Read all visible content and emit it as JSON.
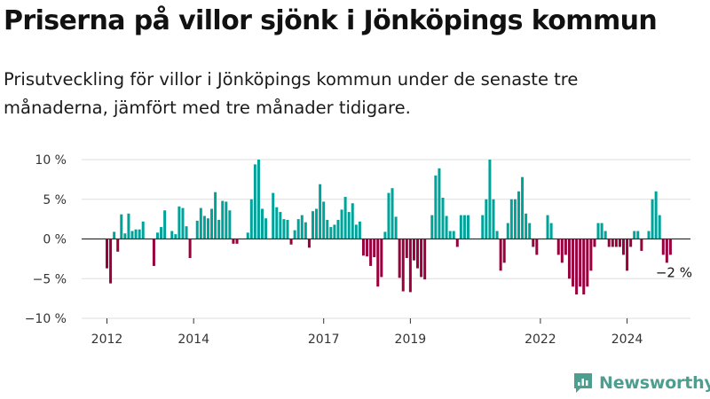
{
  "title": "Priserna på villor sjönk i Jönköpings kommun",
  "subtitle": "Prisutveckling för villor i Jönköpings kommun under de senaste tre månaderna, jämfört med tre månader tidigare.",
  "brand": {
    "name": "Newsworthy",
    "icon": "newsworthy-logo-icon",
    "color": "#4e9e8f"
  },
  "colors": {
    "positive": "#00a39a",
    "negative": "#99003d",
    "grid": "#dddddd",
    "zero_line": "#333333"
  },
  "chart_data": {
    "type": "bar",
    "title": "",
    "xlabel": "",
    "ylabel": "",
    "ylim": [
      -10,
      10
    ],
    "y_ticks": [
      10,
      5,
      0,
      -5,
      -10
    ],
    "y_tick_labels": [
      "10 %",
      "5 %",
      "0 %",
      "−5 %",
      "−10 %"
    ],
    "x_tick_labels": [
      "2012",
      "2014",
      "2017",
      "2019",
      "2022",
      "2024"
    ],
    "grid": true,
    "legend": "none",
    "end_label": "−2 %",
    "x_start": "2012-01",
    "x_end": "2025-02",
    "series": [
      {
        "values": [
          -3.7,
          -5.6,
          0.9,
          -1.6,
          3.1,
          0.7,
          3.2,
          1.0,
          1.2,
          1.2,
          2.2,
          0.0,
          0.0,
          -3.4,
          0.8,
          1.5,
          3.6,
          0.0,
          1.0,
          0.6,
          4.1,
          3.9,
          1.6,
          -2.4,
          0.0,
          2.3,
          3.9,
          2.9,
          2.6,
          3.8,
          5.9,
          2.4,
          4.8,
          4.7,
          3.6,
          -0.6,
          -0.6,
          0.0,
          0.0,
          0.8,
          5.0,
          9.4,
          10.0,
          3.8,
          2.6,
          0.0,
          5.8,
          4.0,
          3.4,
          2.5,
          2.4,
          -0.7,
          1.1,
          2.5,
          3.0,
          2.1,
          -1.1,
          3.5,
          3.8,
          6.9,
          4.7,
          2.4,
          1.5,
          1.8,
          2.4,
          3.7,
          5.3,
          3.4,
          4.5,
          1.8,
          2.2,
          -2.1,
          -2.2,
          -3.4,
          -2.3,
          -6.0,
          -4.8,
          0.9,
          5.8,
          6.4,
          2.8,
          -4.9,
          -6.6,
          -2.4,
          -6.7,
          -2.7,
          -3.7,
          -4.8,
          -5.1,
          0.0,
          3.0,
          8.0,
          8.9,
          5.2,
          2.9,
          1.0,
          1.0,
          -1.0,
          3.0,
          3.0,
          3.0,
          0.0,
          0.0,
          0.0,
          3.0,
          5.0,
          10.0,
          5.0,
          1.0,
          -4.0,
          -3.0,
          2.0,
          5.0,
          5.0,
          6.0,
          7.8,
          3.2,
          2.0,
          -1.0,
          -2.0,
          0.0,
          0.0,
          3.0,
          2.0,
          0.0,
          -2.0,
          -3.0,
          -2.0,
          -5.0,
          -6.0,
          -7.0,
          -6.0,
          -7.0,
          -6.0,
          -4.0,
          -1.0,
          2.0,
          2.0,
          1.0,
          -1.0,
          -1.0,
          -1.0,
          -1.0,
          -2.0,
          -4.0,
          -1.0,
          1.0,
          1.0,
          -1.5,
          0.0,
          1.0,
          5.0,
          6.0,
          3.0,
          -2.0,
          -3.0,
          -2.0
        ]
      }
    ]
  }
}
